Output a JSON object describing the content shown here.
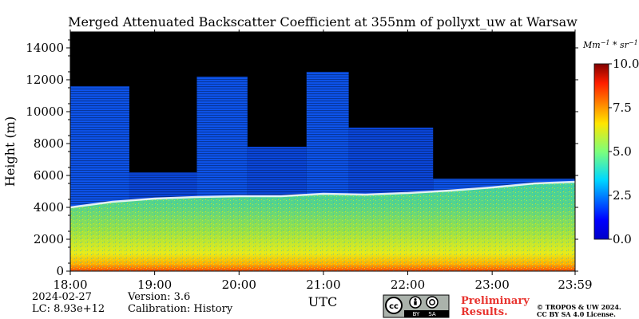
{
  "chart_data": {
    "type": "heatmap",
    "title": "Merged Attenuated Backscatter Coefficient at 355nm of pollyxt_uw at Warsaw",
    "xlabel": "UTC",
    "ylabel": "Height (m)",
    "x_ticks": [
      "18:00",
      "19:00",
      "20:00",
      "21:00",
      "22:00",
      "23:00",
      "23:59"
    ],
    "x_tick_hours": [
      18,
      19,
      20,
      21,
      22,
      23,
      23.983
    ],
    "xlim_hours": [
      18,
      23.983
    ],
    "y_ticks": [
      0,
      2000,
      4000,
      6000,
      8000,
      10000,
      12000,
      14000
    ],
    "ylim": [
      0,
      15000
    ],
    "colorbar": {
      "unit_base": "Mm",
      "unit_exp1": "−1",
      "unit_mid": " * sr",
      "unit_exp2": "−1",
      "ticks": [
        "0.0",
        "2.5",
        "5.0",
        "7.5",
        "10.0"
      ],
      "tick_values": [
        0,
        2.5,
        5,
        7.5,
        10
      ],
      "range": [
        0,
        10
      ],
      "colormap": "jet"
    },
    "layers": {
      "boundary_layer_top_m": [
        {
          "hour": 18.0,
          "h": 4000
        },
        {
          "hour": 18.5,
          "h": 4350
        },
        {
          "hour": 19.0,
          "h": 4550
        },
        {
          "hour": 19.5,
          "h": 4650
        },
        {
          "hour": 20.0,
          "h": 4700
        },
        {
          "hour": 20.5,
          "h": 4700
        },
        {
          "hour": 21.0,
          "h": 4850
        },
        {
          "hour": 21.5,
          "h": 4800
        },
        {
          "hour": 22.0,
          "h": 4900
        },
        {
          "hour": 22.5,
          "h": 5050
        },
        {
          "hour": 23.0,
          "h": 5250
        },
        {
          "hour": 23.5,
          "h": 5500
        },
        {
          "hour": 23.983,
          "h": 5600
        }
      ],
      "cloud_tops_m": [
        {
          "start": 18.0,
          "end": 18.7,
          "top": 11600
        },
        {
          "start": 18.7,
          "end": 19.5,
          "top": 6200
        },
        {
          "start": 19.5,
          "end": 20.1,
          "top": 12200
        },
        {
          "start": 20.1,
          "end": 20.8,
          "top": 7800
        },
        {
          "start": 20.8,
          "end": 21.3,
          "top": 12500
        },
        {
          "start": 21.3,
          "end": 22.3,
          "top": 9000
        },
        {
          "start": 22.3,
          "end": 23.983,
          "top": 5800
        }
      ]
    }
  },
  "footer": {
    "date": "2024-02-27",
    "lc": "LC: 8.93e+12",
    "version": "Version: 3.6",
    "calibration": "Calibration: History",
    "prelim_line1": "Preliminary",
    "prelim_line2": "Results.",
    "copyright_line1": "© TROPOS & UW 2024.",
    "copyright_line2": "CC BY SA 4.0 License.",
    "license_badge": {
      "icon": "cc-by-sa-badge",
      "by": "BY",
      "sa": "SA"
    }
  }
}
